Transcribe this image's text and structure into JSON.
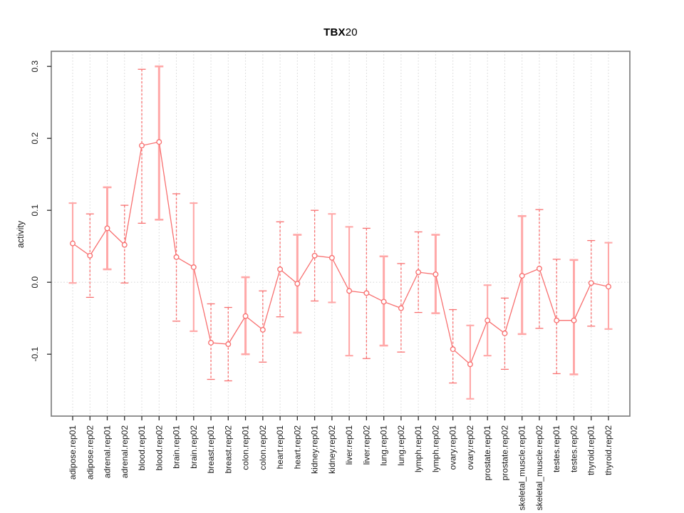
{
  "figure": {
    "title": "TBX20",
    "title_main": "TBX",
    "title_sub": "20",
    "y_axis_title": "activity"
  },
  "chart_data": {
    "type": "line",
    "title": "TBX20",
    "xlabel": "",
    "ylabel": "activity",
    "ylim": [
      -0.186,
      0.321
    ],
    "yticks": [
      0.3,
      0.2,
      0.1,
      0.0,
      -0.1
    ],
    "ytick_labels": [
      "0.3",
      "0.2",
      "0.1",
      "0.0",
      "-0.1"
    ],
    "grid": {
      "vertical_dotted_per_category": true,
      "horizontal_zero_line_dotted": true
    },
    "legend_position": "none",
    "marker": "open-circle",
    "categories": [
      "adipose.rep01",
      "adipose.rep02",
      "adrenal.rep01",
      "adrenal.rep02",
      "blood.rep01",
      "blood.rep02",
      "brain.rep01",
      "brain.rep02",
      "breast.rep01",
      "breast.rep02",
      "colon.rep01",
      "colon.rep02",
      "heart.rep01",
      "heart.rep02",
      "kidney.rep01",
      "kidney.rep02",
      "liver.rep01",
      "liver.rep02",
      "lung.rep01",
      "lung.rep02",
      "lymph.rep01",
      "lymph.rep02",
      "ovary.rep01",
      "ovary.rep02",
      "prostate.rep01",
      "prostate.rep02",
      "skeletal_muscle.rep01",
      "skeletal_muscle.rep02",
      "testes.rep01",
      "testes.rep02",
      "thyroid.rep01",
      "thyroid.rep02"
    ],
    "series": [
      {
        "name": "activity",
        "values": [
          0.054,
          0.037,
          0.075,
          0.052,
          0.19,
          0.195,
          0.035,
          0.021,
          -0.084,
          -0.086,
          -0.047,
          -0.066,
          0.018,
          -0.002,
          0.037,
          0.034,
          -0.012,
          -0.015,
          -0.027,
          -0.036,
          0.014,
          0.011,
          -0.093,
          -0.114,
          -0.053,
          -0.071,
          0.009,
          0.019,
          -0.053,
          -0.053,
          -0.001,
          -0.006
        ],
        "error_low": [
          -0.001,
          -0.021,
          0.018,
          -0.001,
          0.082,
          0.087,
          -0.054,
          -0.068,
          -0.135,
          -0.137,
          -0.1,
          -0.111,
          -0.048,
          -0.07,
          -0.026,
          -0.028,
          -0.102,
          -0.106,
          -0.088,
          -0.097,
          -0.042,
          -0.043,
          -0.14,
          -0.162,
          -0.102,
          -0.121,
          -0.072,
          -0.064,
          -0.127,
          -0.128,
          -0.061,
          -0.065
        ],
        "error_high": [
          0.11,
          0.095,
          0.132,
          0.107,
          0.296,
          0.3,
          0.123,
          0.11,
          -0.03,
          -0.035,
          0.007,
          -0.012,
          0.084,
          0.066,
          0.1,
          0.095,
          0.077,
          0.075,
          0.036,
          0.026,
          0.07,
          0.066,
          -0.038,
          -0.06,
          -0.004,
          -0.022,
          0.092,
          0.101,
          0.032,
          0.031,
          0.058,
          0.055
        ]
      }
    ],
    "error_bar_styles": [
      "light",
      "dashed",
      "thick",
      "dashed",
      "dashed",
      "thick",
      "dashed",
      "light",
      "dashed",
      "dashed",
      "thick",
      "dashed",
      "dashed",
      "thick",
      "dashed",
      "light",
      "light",
      "dashed",
      "thick",
      "dashed",
      "dashed",
      "thick",
      "dashed",
      "light",
      "light",
      "dashed",
      "thick",
      "dashed",
      "dashed",
      "thick",
      "dashed",
      "light"
    ],
    "colors": {
      "point": "#f87070",
      "line": "#f87070",
      "errorbar_dashed": "#f87070",
      "errorbar_light": "#ffa8a8",
      "gridline": "#d6d6d6",
      "box": "#808080",
      "tick": "#2b2b2b",
      "text": "#1a1a1a",
      "background": "#ffffff"
    }
  }
}
